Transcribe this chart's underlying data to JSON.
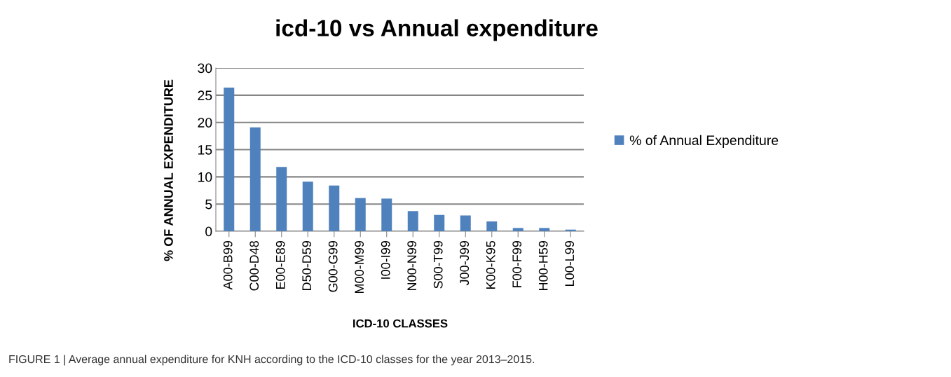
{
  "chart_data": {
    "type": "bar",
    "title": "icd-10 vs Annual expenditure",
    "xlabel": "ICD-10 CLASSES",
    "ylabel": "% OF ANNUAL EXPENDITURE",
    "categories": [
      "A00-B99",
      "C00-D48",
      "E00-E89",
      "D50-D59",
      "G00-G99",
      "M00-M99",
      "I00-I99",
      "N00-N99",
      "S00-T99",
      "J00-J99",
      "K00-K95",
      "F00-F99",
      "H00-H59",
      "L00-L99"
    ],
    "series": [
      {
        "name": "% of Annual Expenditure",
        "color": "#4f81bd",
        "values": [
          26.4,
          19.1,
          11.8,
          9.1,
          8.4,
          6.1,
          6.0,
          3.7,
          3.0,
          2.9,
          1.8,
          0.6,
          0.6,
          0.3
        ]
      }
    ],
    "ylim": [
      0,
      30
    ],
    "yticks": [
      0,
      5,
      10,
      15,
      20,
      25,
      30
    ],
    "grid": "y",
    "legend": "right",
    "annotations": [
      "FIGURE 1 | Average annual expenditure for KNH according to the ICD-10 classes for the year 2013–2015."
    ]
  }
}
